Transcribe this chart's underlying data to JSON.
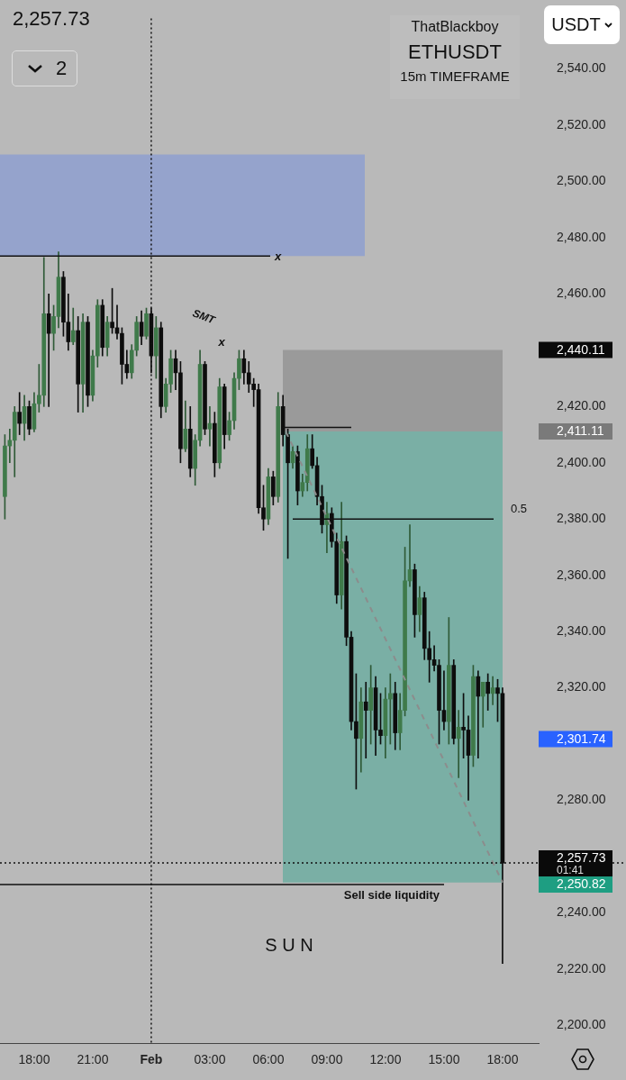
{
  "chart_data": {
    "type": "candlestick",
    "title": "ETHUSDT",
    "subtitle": "15m TIMEFRAME",
    "x": [
      "--01-31T16:30",
      "--01-31T16:45",
      "--01-31T17:00",
      "--01-31T17:15",
      "--01-31T17:30",
      "--01-31T17:45",
      "--01-31T18:00",
      "--01-31T18:15",
      "--01-31T18:30",
      "--01-31T18:45",
      "--01-31T19:00",
      "--01-31T19:15",
      "--01-31T19:30",
      "--01-31T19:45",
      "--01-31T20:00",
      "--01-31T20:15",
      "--01-31T20:30",
      "--01-31T20:45",
      "--01-31T21:00",
      "--01-31T21:15",
      "--01-31T21:30",
      "--01-31T21:45",
      "--01-31T22:00",
      "--01-31T22:15",
      "--01-31T22:30",
      "--01-31T22:45",
      "--01-31T23:00",
      "--01-31T23:15",
      "--01-31T23:30",
      "--01-31T23:45",
      "--02-01T00:00",
      "--02-01T00:15",
      "--02-01T00:30",
      "--02-01T00:45",
      "--02-01T01:00",
      "--02-01T01:15",
      "--02-01T01:30",
      "--02-01T01:45",
      "--02-01T02:00",
      "--02-01T02:15",
      "--02-01T02:30",
      "--02-01T02:45",
      "--02-01T03:00",
      "--02-01T03:15",
      "--02-01T03:30",
      "--02-01T03:45",
      "--02-01T04:00",
      "--02-01T04:15",
      "--02-01T04:30",
      "--02-01T04:45",
      "--02-01T05:00",
      "--02-01T05:15",
      "--02-01T05:30",
      "--02-01T05:45",
      "--02-01T06:00",
      "--02-01T06:15",
      "--02-01T06:30",
      "--02-01T06:45",
      "--02-01T07:00",
      "--02-01T07:15",
      "--02-01T07:30",
      "--02-01T07:45",
      "--02-01T08:00",
      "--02-01T08:15",
      "--02-01T08:30",
      "--02-01T08:45",
      "--02-01T09:00",
      "--02-01T09:15",
      "--02-01T09:30",
      "--02-01T09:45",
      "--02-01T10:00",
      "--02-01T10:15",
      "--02-01T10:30",
      "--02-01T10:45",
      "--02-01T11:00",
      "--02-01T11:15",
      "--02-01T11:30",
      "--02-01T11:45",
      "--02-01T12:00",
      "--02-01T12:15",
      "--02-01T12:30",
      "--02-01T12:45",
      "--02-01T13:00",
      "--02-01T13:15",
      "--02-01T13:30",
      "--02-01T13:45",
      "--02-01T14:00",
      "--02-01T14:15",
      "--02-01T14:30",
      "--02-01T14:45",
      "--02-01T15:00",
      "--02-01T15:15",
      "--02-01T15:30",
      "--02-01T15:45",
      "--02-01T16:00",
      "--02-01T16:15",
      "--02-01T16:30",
      "--02-01T16:45",
      "--02-01T17:00",
      "--02-01T17:15",
      "--02-01T17:30",
      "--02-01T17:45",
      "--02-01T18:00"
    ],
    "ohlc": [
      [
        2388,
        2410,
        2380,
        2406
      ],
      [
        2406,
        2412,
        2400,
        2408
      ],
      [
        2408,
        2420,
        2395,
        2418
      ],
      [
        2418,
        2425,
        2410,
        2414
      ],
      [
        2414,
        2424,
        2408,
        2420
      ],
      [
        2420,
        2422,
        2410,
        2412
      ],
      [
        2412,
        2425,
        2411,
        2421
      ],
      [
        2421,
        2435,
        2418,
        2424
      ],
      [
        2424,
        2473,
        2420,
        2453
      ],
      [
        2453,
        2460,
        2420,
        2446
      ],
      [
        2446,
        2456,
        2440,
        2452
      ],
      [
        2452,
        2475,
        2448,
        2466
      ],
      [
        2466,
        2468,
        2445,
        2450
      ],
      [
        2450,
        2460,
        2440,
        2443
      ],
      [
        2443,
        2455,
        2442,
        2447
      ],
      [
        2447,
        2452,
        2418,
        2428
      ],
      [
        2428,
        2453,
        2418,
        2450
      ],
      [
        2450,
        2452,
        2420,
        2424
      ],
      [
        2424,
        2440,
        2422,
        2438
      ],
      [
        2438,
        2458,
        2434,
        2456
      ],
      [
        2456,
        2458,
        2438,
        2441
      ],
      [
        2441,
        2452,
        2438,
        2450
      ],
      [
        2450,
        2462,
        2446,
        2448
      ],
      [
        2448,
        2456,
        2444,
        2446
      ],
      [
        2446,
        2448,
        2428,
        2435
      ],
      [
        2435,
        2440,
        2430,
        2432
      ],
      [
        2432,
        2442,
        2430,
        2440
      ],
      [
        2440,
        2452,
        2438,
        2450
      ],
      [
        2450,
        2454,
        2442,
        2445
      ],
      [
        2445,
        2455,
        2444,
        2453
      ],
      [
        2453,
        2455,
        2432,
        2438
      ],
      [
        2438,
        2452,
        2430,
        2448
      ],
      [
        2448,
        2450,
        2416,
        2420
      ],
      [
        2420,
        2430,
        2418,
        2428
      ],
      [
        2428,
        2440,
        2425,
        2437
      ],
      [
        2437,
        2440,
        2426,
        2432
      ],
      [
        2432,
        2436,
        2400,
        2405
      ],
      [
        2405,
        2422,
        2404,
        2412
      ],
      [
        2412,
        2420,
        2395,
        2398
      ],
      [
        2398,
        2410,
        2392,
        2408
      ],
      [
        2408,
        2440,
        2406,
        2435
      ],
      [
        2435,
        2436,
        2410,
        2412
      ],
      [
        2412,
        2420,
        2406,
        2414
      ],
      [
        2414,
        2418,
        2395,
        2400
      ],
      [
        2400,
        2430,
        2398,
        2427
      ],
      [
        2427,
        2428,
        2405,
        2410
      ],
      [
        2410,
        2418,
        2408,
        2415
      ],
      [
        2415,
        2432,
        2412,
        2430
      ],
      [
        2430,
        2440,
        2426,
        2437
      ],
      [
        2437,
        2440,
        2428,
        2432
      ],
      [
        2432,
        2436,
        2425,
        2428
      ],
      [
        2428,
        2430,
        2420,
        2426
      ],
      [
        2426,
        2428,
        2382,
        2384
      ],
      [
        2384,
        2392,
        2376,
        2380
      ],
      [
        2380,
        2398,
        2378,
        2395
      ],
      [
        2395,
        2397,
        2385,
        2388
      ],
      [
        2388,
        2425,
        2386,
        2420
      ],
      [
        2420,
        2424,
        2406,
        2410
      ],
      [
        2410,
        2412,
        2366,
        2400
      ],
      [
        2400,
        2406,
        2398,
        2404
      ],
      [
        2404,
        2406,
        2385,
        2390
      ],
      [
        2390,
        2396,
        2388,
        2393
      ],
      [
        2393,
        2410,
        2390,
        2405
      ],
      [
        2405,
        2410,
        2398,
        2399
      ],
      [
        2399,
        2402,
        2385,
        2388
      ],
      [
        2388,
        2392,
        2375,
        2378
      ],
      [
        2378,
        2386,
        2368,
        2382
      ],
      [
        2382,
        2384,
        2370,
        2372
      ],
      [
        2372,
        2375,
        2350,
        2353
      ],
      [
        2353,
        2386,
        2348,
        2372
      ],
      [
        2372,
        2374,
        2335,
        2338
      ],
      [
        2338,
        2340,
        2305,
        2308
      ],
      [
        2308,
        2325,
        2284,
        2302
      ],
      [
        2302,
        2320,
        2290,
        2315
      ],
      [
        2315,
        2322,
        2295,
        2312
      ],
      [
        2312,
        2328,
        2300,
        2320
      ],
      [
        2320,
        2324,
        2296,
        2305
      ],
      [
        2305,
        2318,
        2300,
        2303
      ],
      [
        2303,
        2320,
        2295,
        2316
      ],
      [
        2316,
        2325,
        2300,
        2318
      ],
      [
        2318,
        2322,
        2298,
        2304
      ],
      [
        2304,
        2318,
        2298,
        2312
      ],
      [
        2312,
        2370,
        2310,
        2358
      ],
      [
        2358,
        2378,
        2356,
        2362
      ],
      [
        2362,
        2364,
        2338,
        2346
      ],
      [
        2346,
        2356,
        2340,
        2352
      ],
      [
        2352,
        2354,
        2330,
        2334
      ],
      [
        2334,
        2340,
        2322,
        2330
      ],
      [
        2330,
        2335,
        2326,
        2328
      ],
      [
        2328,
        2330,
        2300,
        2312
      ],
      [
        2312,
        2326,
        2305,
        2308
      ],
      [
        2308,
        2345,
        2300,
        2328
      ],
      [
        2328,
        2330,
        2300,
        2302
      ],
      [
        2302,
        2312,
        2288,
        2306
      ],
      [
        2306,
        2318,
        2295,
        2305
      ],
      [
        2305,
        2310,
        2280,
        2296
      ],
      [
        2296,
        2328,
        2292,
        2324
      ],
      [
        2324,
        2326,
        2295,
        2317
      ],
      [
        2317,
        2322,
        2306,
        2322
      ],
      [
        2322,
        2325,
        2312,
        2318
      ],
      [
        2318,
        2324,
        2314,
        2320
      ],
      [
        2320,
        2323,
        2308,
        2318
      ],
      [
        2318,
        2320,
        2222,
        2257.73
      ]
    ],
    "series": [
      {
        "type": "line",
        "x": [
          "--02-01T06:54",
          "--02-01T18:00"
        ],
        "values": [
          2411,
          2250.8
        ],
        "color": "#8c8c8c",
        "line_style": "dashed",
        "marker": "none"
      }
    ],
    "xlim": [
      "--01-31T16:15",
      "--02-01T19:51"
    ],
    "xticks": [
      {
        "value": "--01-31T18:00",
        "label": "18:00"
      },
      {
        "value": "--01-31T21:00",
        "label": "21:00"
      },
      {
        "value": "--02-01T00:00",
        "label": "Feb"
      },
      {
        "value": "--02-01T03:00",
        "label": "03:00"
      },
      {
        "value": "--02-01T06:00",
        "label": "06:00"
      },
      {
        "value": "--02-01T09:00",
        "label": "09:00"
      },
      {
        "value": "--02-01T12:00",
        "label": "12:00"
      },
      {
        "value": "--02-01T15:00",
        "label": "15:00"
      },
      {
        "value": "--02-01T18:00",
        "label": "18:00"
      }
    ],
    "ylim": [
      2193.7,
      2558
    ],
    "yticks": [
      {
        "value": 2200,
        "label": "2,200.00"
      },
      {
        "value": 2220,
        "label": "2,220.00"
      },
      {
        "value": 2240,
        "label": "2,240.00"
      },
      {
        "value": 2280,
        "label": "2,280.00"
      },
      {
        "value": 2320,
        "label": "2,320.00"
      },
      {
        "value": 2340,
        "label": "2,340.00"
      },
      {
        "value": 2360,
        "label": "2,360.00"
      },
      {
        "value": 2380,
        "label": "2,380.00"
      },
      {
        "value": 2400,
        "label": "2,400.00"
      },
      {
        "value": 2420,
        "label": "2,420.00"
      },
      {
        "value": 2460,
        "label": "2,460.00"
      },
      {
        "value": 2480,
        "label": "2,480.00"
      },
      {
        "value": 2500,
        "label": "2,500.00"
      },
      {
        "value": 2520,
        "label": "2,520.00"
      },
      {
        "value": 2540,
        "label": "2,540.00"
      },
      {
        "value": 2440.11,
        "label": "2,440.11"
      },
      {
        "value": 2411.11,
        "label": "2,411.11"
      },
      {
        "value": 2301.74,
        "label": "2,301.74"
      },
      {
        "value": 2257.73,
        "label": "2,257.73"
      },
      {
        "value": 2250.82,
        "label": "2,250.82"
      }
    ],
    "grid": false,
    "legend": false,
    "bands": [
      {
        "axis": "y",
        "from": 2473.5,
        "to": 2509.6,
        "color": "#95a3cc"
      },
      {
        "axis": "y",
        "from": 2411.11,
        "to": 2440.11,
        "color": "#9a9a9a"
      },
      {
        "axis": "y",
        "from": 2250.82,
        "to": 2411.11,
        "color": "#7aafa5"
      }
    ],
    "ref_lines": [
      {
        "axis": "y",
        "value": 2473.5,
        "label": "x",
        "color": "#111111",
        "line_style": "solid"
      },
      {
        "axis": "y",
        "value": 2412.6,
        "color": "#111111",
        "line_style": "solid"
      },
      {
        "axis": "y",
        "value": 2380,
        "color": "#111111",
        "line_style": "solid"
      },
      {
        "axis": "y",
        "value": 2250.1,
        "label": "Sell side liquidity",
        "color": "#111111",
        "line_style": "solid"
      },
      {
        "axis": "y",
        "value": 2257.73,
        "color": "#111111",
        "line_style": "dotted"
      },
      {
        "axis": "x",
        "value": "--02-01T00:00",
        "color": "#111111",
        "line_style": "dotted"
      }
    ],
    "annotations": [
      "ThatBlackboy",
      "2,257.73",
      "2",
      "USDT",
      "SMT",
      "x",
      "S U N",
      "0.5",
      "01:41"
    ]
  }
}
